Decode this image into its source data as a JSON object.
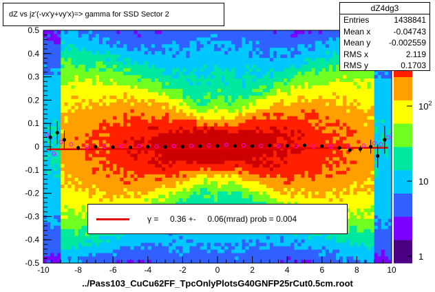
{
  "title": "dZ vs    jz'(-vx'y+vy'x)=> gamma for SSD Sector 2",
  "stats": {
    "name": "dZ4dg3",
    "rows": [
      {
        "label": "Entries",
        "value": "1438841"
      },
      {
        "label": "Mean x",
        "value": "-0.04743"
      },
      {
        "label": "Mean y",
        "value": "-0.002559"
      },
      {
        "label": "RMS x",
        "value": "2.119"
      },
      {
        "label": "RMS y",
        "value": "0.1703"
      }
    ]
  },
  "legend": {
    "text": "γ =     0.36 +-     0.06(mrad) prob = 0.004",
    "color": "#e00000"
  },
  "footer": "../Pass103_CuCu62FF_TpcOnlyPlotsG40GNFP25rCut0.5cm.root",
  "chart_data": {
    "type": "heatmap",
    "xlim": [
      -10,
      10
    ],
    "ylim": [
      -0.5,
      0.5
    ],
    "x_ticks": [
      "-10",
      "-8",
      "-6",
      "-4",
      "-2",
      "0",
      "2",
      "4",
      "6",
      "8",
      "10"
    ],
    "y_ticks": [
      "-0.5",
      "-0.4",
      "-0.3",
      "-0.2",
      "-0.1",
      "0",
      "0.1",
      "0.2",
      "0.3",
      "0.4",
      "0.5"
    ],
    "z_scale": "log",
    "z_ticks": [
      "1",
      "10",
      "10^2"
    ],
    "colormap": [
      "#4b0082",
      "#7a00ff",
      "#3060ff",
      "#00c8ff",
      "#00e8a0",
      "#70ff20",
      "#ffff00",
      "#ffa000",
      "#ff2000",
      "#cc0000"
    ],
    "fit": {
      "slope": 0.00036,
      "intercept": -0.008,
      "color": "#e00000"
    },
    "profile_black": {
      "x": [
        -9.6,
        -9.2,
        -8.8,
        -8,
        -7,
        -6,
        -5,
        -4,
        -3,
        -2,
        -1,
        0,
        1,
        2,
        3,
        4,
        5,
        6,
        7,
        7.6,
        8.2,
        8.8,
        9.2,
        9.6
      ],
      "y": [
        0.04,
        0.06,
        0.03,
        -0.005,
        0.0,
        -0.002,
        -0.003,
        0.0,
        -0.001,
        0.0,
        0.002,
        0.003,
        0.003,
        0.002,
        0.005,
        0.004,
        0.006,
        0.002,
        -0.005,
        -0.015,
        -0.01,
        0.0,
        -0.04,
        0.03
      ],
      "err": [
        0.06,
        0.05,
        0.04,
        0.01,
        0.005,
        0.004,
        0.004,
        0.003,
        0.003,
        0.003,
        0.002,
        0.002,
        0.002,
        0.003,
        0.003,
        0.003,
        0.004,
        0.004,
        0.005,
        0.008,
        0.015,
        0.03,
        0.05,
        0.06
      ]
    },
    "profile_magenta": {
      "x": [
        -9.8,
        -9.4,
        -9,
        -8.4,
        -7.5,
        -6.5,
        -5.5,
        -4.5,
        -3.5,
        -2.5,
        -1.5,
        -0.5,
        0.5,
        1.5,
        2.5,
        3.5,
        4.5,
        5.5,
        6.5,
        7.5,
        8.4,
        9,
        9.4,
        9.8
      ],
      "y": [
        0.05,
        -0.03,
        0.02,
        0.01,
        -0.003,
        0.0,
        0.002,
        0.003,
        0.001,
        0.003,
        0.004,
        0.006,
        0.008,
        0.006,
        0.004,
        0.003,
        0.002,
        0.001,
        0.0,
        0.001,
        0.005,
        0.015,
        0.01,
        0.04
      ]
    }
  }
}
